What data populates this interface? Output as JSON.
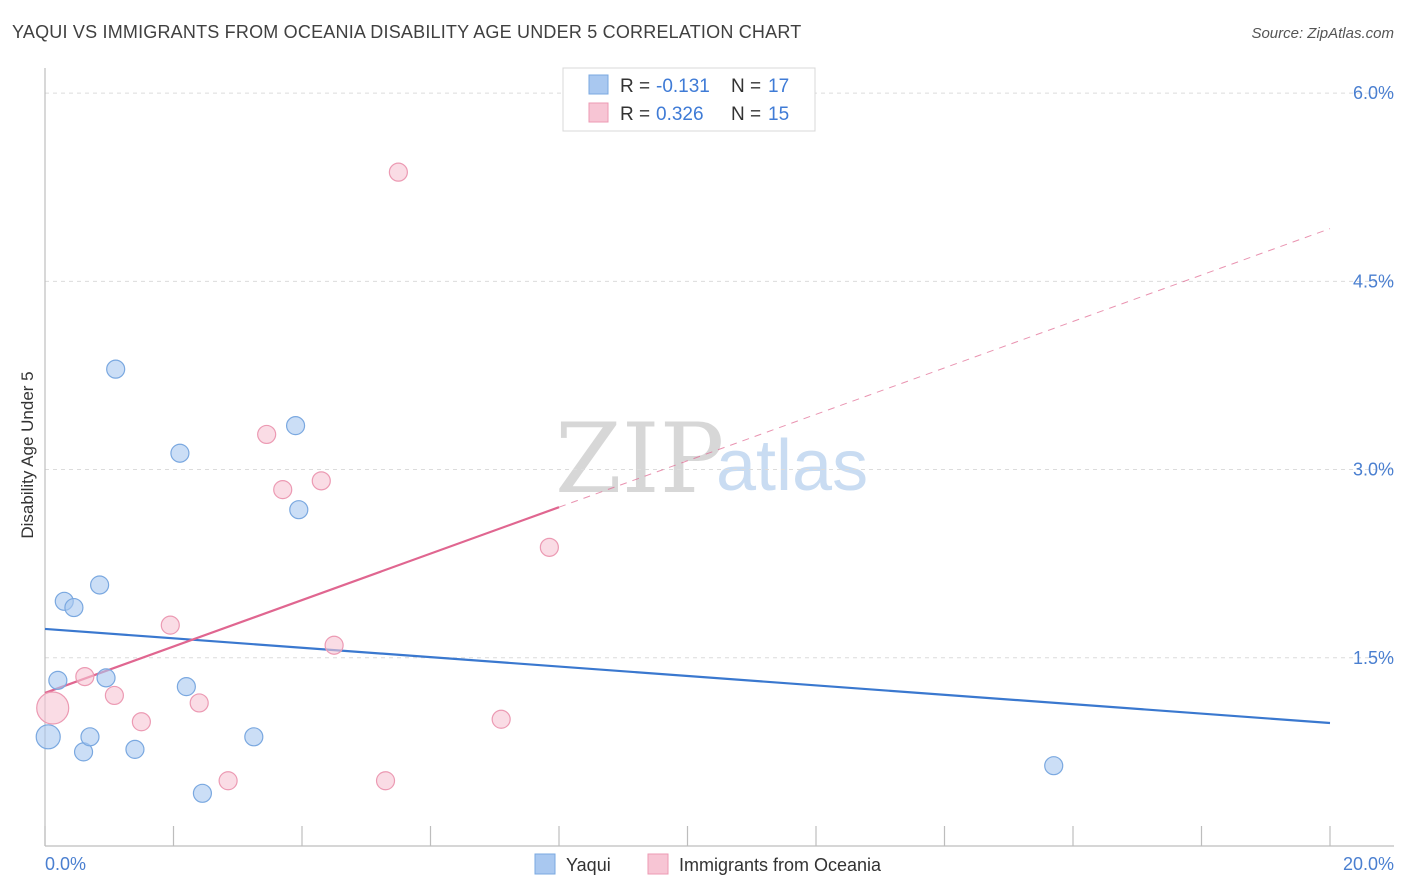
{
  "chart_data": {
    "type": "scatter",
    "title": "YAQUI VS IMMIGRANTS FROM OCEANIA DISABILITY AGE UNDER 5 CORRELATION CHART",
    "source": "Source: ZipAtlas.com",
    "ylabel": "Disability Age Under 5",
    "xlabel": "",
    "xlim": [
      0,
      20
    ],
    "ylim": [
      0,
      6.2
    ],
    "y_ticks": [
      1.5,
      3.0,
      4.5,
      6.0
    ],
    "y_tick_labels": [
      "1.5%",
      "3.0%",
      "4.5%",
      "6.0%"
    ],
    "x_tick_labels": [
      "0.0%",
      "20.0%"
    ],
    "watermark": {
      "zip": "ZIP",
      "atlas": "atlas"
    },
    "legend": {
      "r_label": "R =",
      "n_label": "N =",
      "entries": [
        {
          "r": "-0.131",
          "n": "17"
        },
        {
          "r": "0.326",
          "n": "15"
        }
      ]
    },
    "series": [
      {
        "name": "Yaqui",
        "color": "#a9c8f0",
        "stroke": "#7aa8e0",
        "line_color": "#3a78cf",
        "trend": {
          "x0": 0,
          "y0": 1.73,
          "x1": 20,
          "y1": 0.98,
          "solid_to": 20
        },
        "points": [
          {
            "x": 0.05,
            "y": 0.87,
            "r": 12
          },
          {
            "x": 0.2,
            "y": 1.32,
            "r": 9
          },
          {
            "x": 0.3,
            "y": 1.95,
            "r": 9
          },
          {
            "x": 0.45,
            "y": 1.9,
            "r": 9
          },
          {
            "x": 0.6,
            "y": 0.75,
            "r": 9
          },
          {
            "x": 0.7,
            "y": 0.87,
            "r": 9
          },
          {
            "x": 0.85,
            "y": 2.08,
            "r": 9
          },
          {
            "x": 0.95,
            "y": 1.34,
            "r": 9
          },
          {
            "x": 1.1,
            "y": 3.8,
            "r": 9
          },
          {
            "x": 1.4,
            "y": 0.77,
            "r": 9
          },
          {
            "x": 2.1,
            "y": 3.13,
            "r": 9
          },
          {
            "x": 2.2,
            "y": 1.27,
            "r": 9
          },
          {
            "x": 2.45,
            "y": 0.42,
            "r": 9
          },
          {
            "x": 3.25,
            "y": 0.87,
            "r": 9
          },
          {
            "x": 3.9,
            "y": 3.35,
            "r": 9
          },
          {
            "x": 3.95,
            "y": 2.68,
            "r": 9
          },
          {
            "x": 15.7,
            "y": 0.64,
            "r": 9
          }
        ]
      },
      {
        "name": "Immigrants from Oceania",
        "color": "#f7c5d4",
        "stroke": "#ec9ab3",
        "line_color": "#e06690",
        "trend": {
          "x0": 0,
          "y0": 1.22,
          "x1": 20,
          "y1": 4.92,
          "solid_to": 8.0
        },
        "points": [
          {
            "x": 0.12,
            "y": 1.1,
            "r": 16
          },
          {
            "x": 0.62,
            "y": 1.35,
            "r": 9
          },
          {
            "x": 1.08,
            "y": 1.2,
            "r": 9
          },
          {
            "x": 1.5,
            "y": 0.99,
            "r": 9
          },
          {
            "x": 1.95,
            "y": 1.76,
            "r": 9
          },
          {
            "x": 2.4,
            "y": 1.14,
            "r": 9
          },
          {
            "x": 2.85,
            "y": 0.52,
            "r": 9
          },
          {
            "x": 3.45,
            "y": 3.28,
            "r": 9
          },
          {
            "x": 3.7,
            "y": 2.84,
            "r": 9
          },
          {
            "x": 4.3,
            "y": 2.91,
            "r": 9
          },
          {
            "x": 4.5,
            "y": 1.6,
            "r": 9
          },
          {
            "x": 5.3,
            "y": 0.52,
            "r": 9
          },
          {
            "x": 5.5,
            "y": 5.37,
            "r": 9
          },
          {
            "x": 7.1,
            "y": 1.01,
            "r": 9
          },
          {
            "x": 7.85,
            "y": 2.38,
            "r": 9
          }
        ]
      }
    ]
  }
}
